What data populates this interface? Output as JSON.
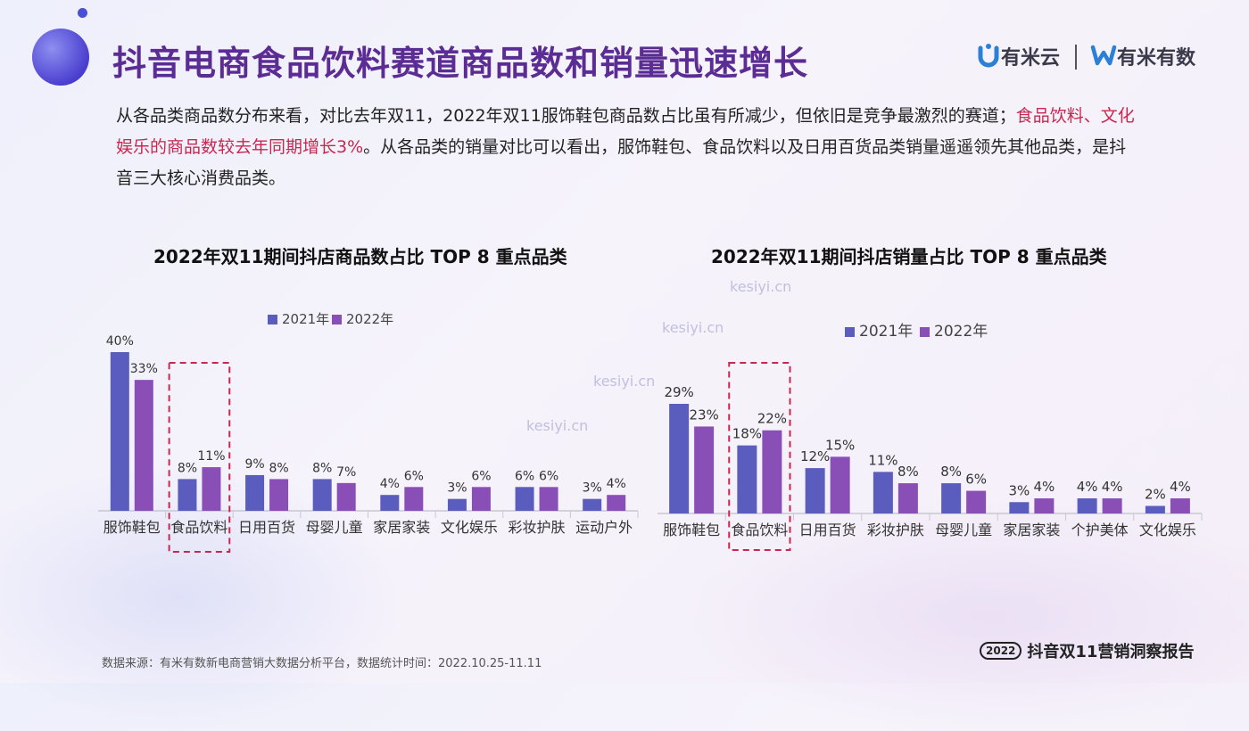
{
  "title": "抖音电商食品饮料赛道商品数和销量迅速增长",
  "logos": {
    "youmiyun": "有米云",
    "youmiyoushu": "有米有数"
  },
  "paragraph": {
    "part1": "从各品类商品数分布来看，对比去年双11，2022年双11服饰鞋包商品数占比虽有所减少，但依旧是竞争最激烈的赛道；",
    "highlight": "食品饮料、文化娱乐的商品数较去年同期增长3%",
    "part2": "。从各品类的销量对比可以看出，服饰鞋包、食品饮料以及日用百货品类销量遥遥领先其他品类，是抖音三大核心消费品类。"
  },
  "colors": {
    "y2021": "#5a5dbd",
    "y2022": "#8a4fb7",
    "title": "#5b2c93",
    "highlight": "#c8274f",
    "dash": "#c8274f"
  },
  "chart_data": [
    {
      "type": "bar",
      "title": "2022年双11期间抖店商品数占比 TOP 8 重点品类",
      "categories": [
        "服饰鞋包",
        "食品饮料",
        "日用百货",
        "母婴儿童",
        "家居家装",
        "文化娱乐",
        "彩妆护肤",
        "运动户外"
      ],
      "series": [
        {
          "name": "2021年",
          "values": [
            40,
            8,
            9,
            8,
            4,
            3,
            6,
            3
          ],
          "labels": [
            "40%",
            "8%",
            "9%",
            "8%",
            "4%",
            "3%",
            "6%",
            "3%"
          ]
        },
        {
          "name": "2022年",
          "values": [
            33,
            11,
            8,
            7,
            6,
            6,
            6,
            4
          ],
          "labels": [
            "33%",
            "11%",
            "8%",
            "7%",
            "6%",
            "6%",
            "6%",
            "4%"
          ]
        }
      ],
      "ylim": [
        0,
        40
      ],
      "highlighted_category": "食品饮料",
      "legend_position": "top"
    },
    {
      "type": "bar",
      "title": "2022年双11期间抖店销量占比 TOP 8 重点品类",
      "categories": [
        "服饰鞋包",
        "食品饮料",
        "日用百货",
        "彩妆护肤",
        "母婴儿童",
        "家居家装",
        "个护美体",
        "文化娱乐"
      ],
      "series": [
        {
          "name": "2021年",
          "values": [
            29,
            18,
            12,
            11,
            8,
            3,
            4,
            2
          ],
          "labels": [
            "29%",
            "18%",
            "12%",
            "11%",
            "8%",
            "3%",
            "4%",
            "2%"
          ]
        },
        {
          "name": "2022年",
          "values": [
            23,
            22,
            15,
            8,
            6,
            4,
            4,
            4
          ],
          "labels": [
            "23%",
            "22%",
            "15%",
            "8%",
            "6%",
            "4%",
            "4%",
            "4%"
          ]
        }
      ],
      "ylim": [
        0,
        29
      ],
      "highlighted_category": "食品饮料",
      "legend_position": "top"
    }
  ],
  "watermark": "kesiyi.cn",
  "footer": {
    "source": "数据来源：有米有数新电商营销大数据分析平台，数据统计时间：2022.10.25-11.11",
    "badge_year": "2022",
    "badge_text": "抖音双11营销洞察报告"
  }
}
